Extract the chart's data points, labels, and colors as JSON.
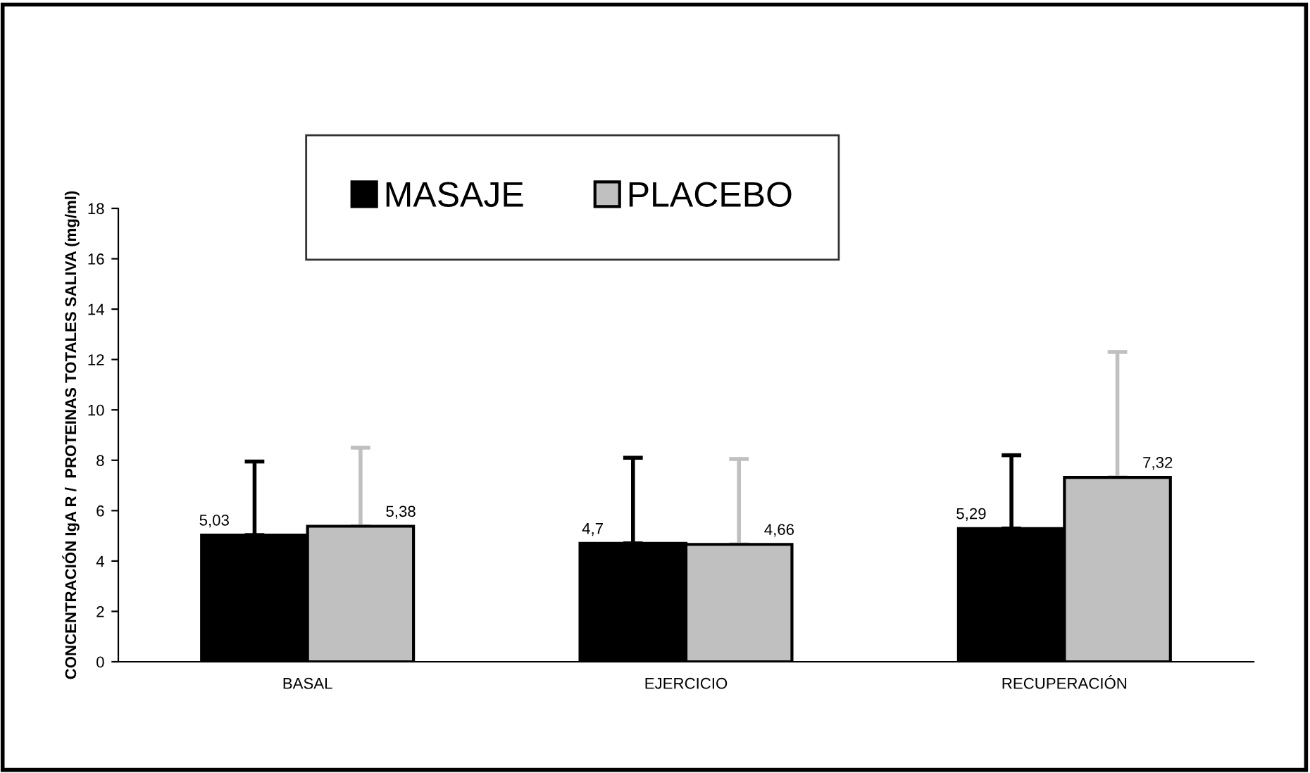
{
  "chart_data": {
    "type": "bar",
    "ylabel": "CONCENTRACIÓN IgA R /  PROTEINAS TOTALES SALIVA (mg/ml)",
    "categories": [
      "BASAL",
      "EJERCICIO",
      "RECUPERACIÓN"
    ],
    "series": [
      {
        "name": "MASAJE",
        "color": "#000000",
        "values": [
          5.03,
          4.7,
          5.29
        ],
        "errors": [
          [
            5.03,
            7.95
          ],
          [
            4.7,
            8.1
          ],
          [
            5.29,
            8.2
          ]
        ],
        "value_labels": [
          "5,03",
          "4,7",
          "5,29"
        ]
      },
      {
        "name": "PLACEBO",
        "color": "#c0c0c0",
        "values": [
          5.38,
          4.66,
          7.32
        ],
        "errors": [
          [
            5.38,
            8.5
          ],
          [
            4.66,
            8.05
          ],
          [
            7.32,
            12.3
          ]
        ],
        "value_labels": [
          "5,38",
          "4,66",
          "7,32"
        ]
      }
    ],
    "ylim": [
      0,
      18
    ],
    "yticks": [
      0,
      2,
      4,
      6,
      8,
      10,
      12,
      14,
      16,
      18
    ],
    "grid": false,
    "legend": "top"
  }
}
